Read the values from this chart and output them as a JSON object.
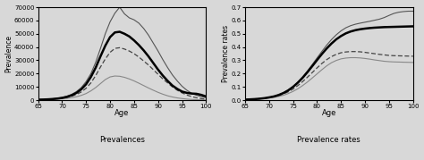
{
  "age": [
    65,
    66,
    67,
    68,
    69,
    70,
    71,
    72,
    73,
    74,
    75,
    76,
    77,
    78,
    79,
    80,
    81,
    82,
    83,
    84,
    85,
    86,
    87,
    88,
    89,
    90,
    91,
    92,
    93,
    94,
    95,
    96,
    97,
    98,
    99,
    100
  ],
  "left_ylim": [
    0,
    70000
  ],
  "left_yticks": [
    0,
    10000,
    20000,
    30000,
    40000,
    50000,
    60000,
    70000
  ],
  "right_ylim": [
    0,
    0.7
  ],
  "right_yticks": [
    0,
    0.1,
    0.2,
    0.3,
    0.4,
    0.5,
    0.6,
    0.7
  ],
  "xlim": [
    65,
    100
  ],
  "xticks": [
    65,
    70,
    75,
    80,
    85,
    90,
    95,
    100
  ],
  "left_xlabel": "Age",
  "left_xlabel2": "Prevalences",
  "right_xlabel": "Age",
  "right_xlabel2": "Prevalence rates",
  "left_ylabel": "Prevalence",
  "right_ylabel": "Prevalence rates",
  "background_color": "#d8d8d8",
  "plot_bg": "#d8d8d8",
  "lines_left": {
    "line1_color": "#888888",
    "line1_lw": 0.8,
    "line1_ls": "solid",
    "line1_vals": [
      300,
      380,
      480,
      620,
      800,
      1050,
      1400,
      1900,
      2600,
      3600,
      5000,
      7000,
      9500,
      12500,
      15500,
      17500,
      18200,
      18000,
      17200,
      16000,
      14500,
      12800,
      11000,
      9200,
      7500,
      5900,
      4500,
      3300,
      2400,
      1700,
      1200,
      800,
      500,
      320,
      200,
      120
    ],
    "line2_color": "#444444",
    "line2_lw": 0.9,
    "line2_ls": "dashed",
    "line2_vals": [
      350,
      450,
      600,
      800,
      1100,
      1500,
      2100,
      3000,
      4300,
      6200,
      9000,
      13000,
      18500,
      25000,
      31000,
      36000,
      39000,
      39500,
      38500,
      37000,
      35000,
      32500,
      29500,
      26500,
      23000,
      19500,
      16000,
      13000,
      10000,
      7500,
      5500,
      3900,
      2700,
      1800,
      1200,
      750
    ],
    "line3_color": "#555555",
    "line3_lw": 0.8,
    "line3_ls": "solid",
    "line3_vals": [
      400,
      550,
      750,
      1050,
      1450,
      2100,
      3000,
      4400,
      6500,
      9500,
      14000,
      20000,
      28500,
      39000,
      50000,
      59000,
      65500,
      70000,
      65000,
      62000,
      60500,
      58000,
      54000,
      49000,
      43000,
      37000,
      30500,
      24500,
      19000,
      14500,
      10500,
      7500,
      5200,
      3700,
      2700,
      1900
    ],
    "line4_color": "#000000",
    "line4_lw": 1.8,
    "line4_ls": "solid",
    "line4_vals": [
      350,
      460,
      620,
      850,
      1200,
      1700,
      2500,
      3700,
      5500,
      8200,
      12000,
      17500,
      24500,
      33000,
      41000,
      47500,
      51000,
      51500,
      50000,
      48000,
      45000,
      41500,
      37500,
      33000,
      28000,
      23000,
      18500,
      14500,
      11000,
      8500,
      6500,
      5500,
      5000,
      4800,
      4000,
      2800
    ]
  },
  "lines_right": {
    "line1_color": "#888888",
    "line1_lw": 0.8,
    "line1_ls": "solid",
    "line1_vals": [
      0.004,
      0.005,
      0.007,
      0.009,
      0.012,
      0.016,
      0.021,
      0.028,
      0.037,
      0.05,
      0.066,
      0.086,
      0.11,
      0.137,
      0.167,
      0.198,
      0.229,
      0.258,
      0.282,
      0.299,
      0.311,
      0.317,
      0.32,
      0.32,
      0.318,
      0.314,
      0.309,
      0.303,
      0.298,
      0.293,
      0.29,
      0.288,
      0.287,
      0.286,
      0.285,
      0.284
    ],
    "line2_color": "#444444",
    "line2_lw": 0.9,
    "line2_ls": "dashed",
    "line2_vals": [
      0.004,
      0.006,
      0.008,
      0.011,
      0.014,
      0.019,
      0.026,
      0.035,
      0.047,
      0.063,
      0.084,
      0.11,
      0.14,
      0.173,
      0.208,
      0.243,
      0.276,
      0.305,
      0.328,
      0.345,
      0.357,
      0.363,
      0.366,
      0.366,
      0.364,
      0.36,
      0.355,
      0.35,
      0.345,
      0.341,
      0.337,
      0.335,
      0.334,
      0.333,
      0.332,
      0.331
    ],
    "line3_color": "#555555",
    "line3_lw": 0.8,
    "line3_ls": "solid",
    "line3_vals": [
      0.004,
      0.006,
      0.008,
      0.011,
      0.015,
      0.021,
      0.029,
      0.04,
      0.055,
      0.076,
      0.103,
      0.136,
      0.175,
      0.22,
      0.268,
      0.318,
      0.367,
      0.414,
      0.456,
      0.492,
      0.522,
      0.545,
      0.561,
      0.572,
      0.58,
      0.587,
      0.594,
      0.602,
      0.61,
      0.622,
      0.638,
      0.653,
      0.662,
      0.667,
      0.67,
      0.67
    ],
    "line4_color": "#000000",
    "line4_lw": 1.8,
    "line4_ls": "solid",
    "line4_vals": [
      0.004,
      0.006,
      0.008,
      0.011,
      0.015,
      0.021,
      0.028,
      0.039,
      0.054,
      0.074,
      0.1,
      0.132,
      0.169,
      0.211,
      0.256,
      0.302,
      0.347,
      0.389,
      0.426,
      0.458,
      0.483,
      0.503,
      0.517,
      0.527,
      0.534,
      0.539,
      0.543,
      0.546,
      0.548,
      0.55,
      0.551,
      0.552,
      0.553,
      0.554,
      0.555,
      0.556
    ]
  }
}
